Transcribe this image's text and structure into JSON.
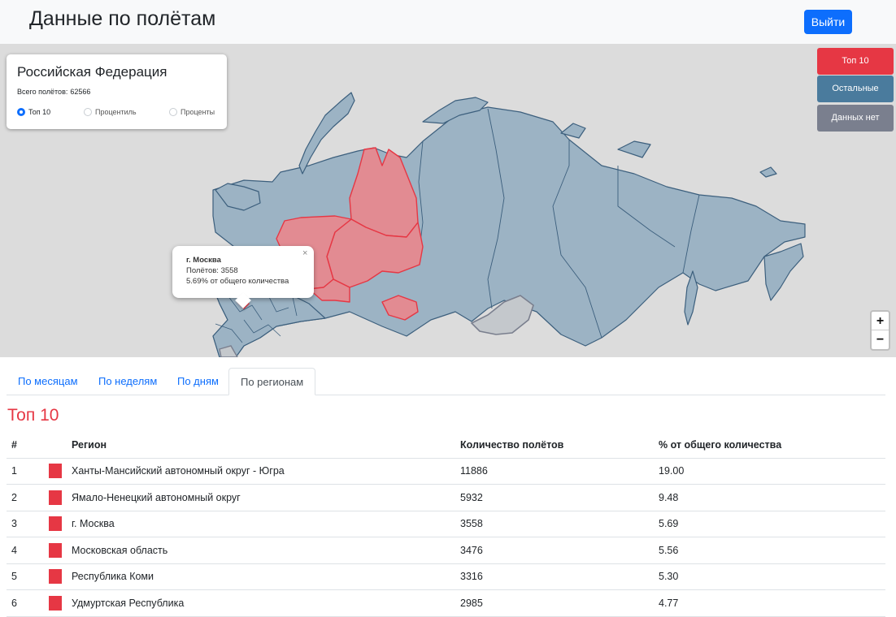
{
  "header": {
    "title": "Данные по полётам",
    "logout_label": "Выйти"
  },
  "info": {
    "title": "Российская Федерация",
    "total_label": "Всего полётов:",
    "total_value": "62566",
    "modes": [
      {
        "label": "Топ 10",
        "checked": true
      },
      {
        "label": "Процентиль",
        "checked": false
      },
      {
        "label": "Проценты",
        "checked": false
      }
    ]
  },
  "legend": {
    "top10": "Топ 10",
    "others": "Остальные",
    "no_data": "Данных нет"
  },
  "colors": {
    "top10": "#e63744",
    "others": "#4a7b9d",
    "no_data": "#7a7f8e",
    "accent": "#0d6efd"
  },
  "popup": {
    "region": "г. Москва",
    "count_label": "Полётов: 3558",
    "percent_label": "5.69% от общего количества",
    "close": "×"
  },
  "zoom": {
    "in": "+",
    "out": "−"
  },
  "tabs": [
    "По месяцам",
    "По неделям",
    "По дням",
    "По регионам"
  ],
  "active_tab": "По регионам",
  "section_title": "Топ 10",
  "table": {
    "headers": [
      "#",
      "",
      "Регион",
      "Количество полётов",
      "% от общего количества"
    ],
    "rows": [
      {
        "n": "1",
        "region": "Ханты-Мансийский автономный округ - Югра",
        "count": "11886",
        "pct": "19.00"
      },
      {
        "n": "2",
        "region": "Ямало-Ненецкий автономный округ",
        "count": "5932",
        "pct": "9.48"
      },
      {
        "n": "3",
        "region": "г. Москва",
        "count": "3558",
        "pct": "5.69"
      },
      {
        "n": "4",
        "region": "Московская область",
        "count": "3476",
        "pct": "5.56"
      },
      {
        "n": "5",
        "region": "Республика Коми",
        "count": "3316",
        "pct": "5.30"
      },
      {
        "n": "6",
        "region": "Удмуртская Республика",
        "count": "2985",
        "pct": "4.77"
      }
    ]
  }
}
